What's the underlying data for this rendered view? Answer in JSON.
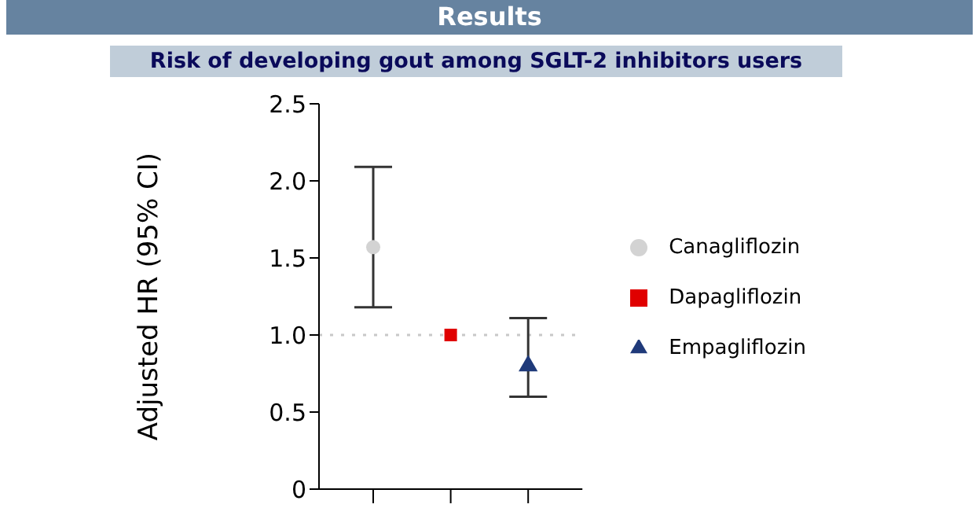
{
  "chart_data": {
    "type": "scatter",
    "title": "Results",
    "subtitle": "Risk of developing gout among SGLT-2 inhibitors users",
    "ylabel": "Adjusted HR (95% CI)",
    "categories": [
      null,
      null,
      null
    ],
    "series": [
      {
        "name": "Canagliflozin",
        "color": "#d3d3d3",
        "marker": "circle",
        "values": [
          1.57,
          null,
          null
        ],
        "errors": [
          [
            1.18,
            2.09
          ],
          null,
          null
        ]
      },
      {
        "name": "Dapagliflozin",
        "color": "#e00000",
        "marker": "square",
        "values": [
          null,
          1.0,
          null
        ]
      },
      {
        "name": "Empagliflozin",
        "color": "#1f3a7a",
        "marker": "triangle",
        "values": [
          null,
          null,
          0.8
        ],
        "errors": [
          null,
          null,
          [
            0.6,
            1.11
          ]
        ]
      }
    ],
    "ylim": [
      0,
      2.5
    ],
    "yticks": [
      0,
      {
        "value": 0.5,
        "label": "0.5"
      },
      {
        "value": 1,
        "label": "1.0"
      },
      {
        "value": 1.5,
        "label": "1.5"
      },
      {
        "value": 2,
        "label": "2.0"
      },
      {
        "value": 2.5,
        "label": "2.5"
      }
    ],
    "ref_lines": [
      {
        "axis": "y",
        "value": 1,
        "color": "#c8c8c8",
        "line_style": "dotted"
      }
    ],
    "tick_labels": "y",
    "grid": false,
    "legend": "right"
  }
}
